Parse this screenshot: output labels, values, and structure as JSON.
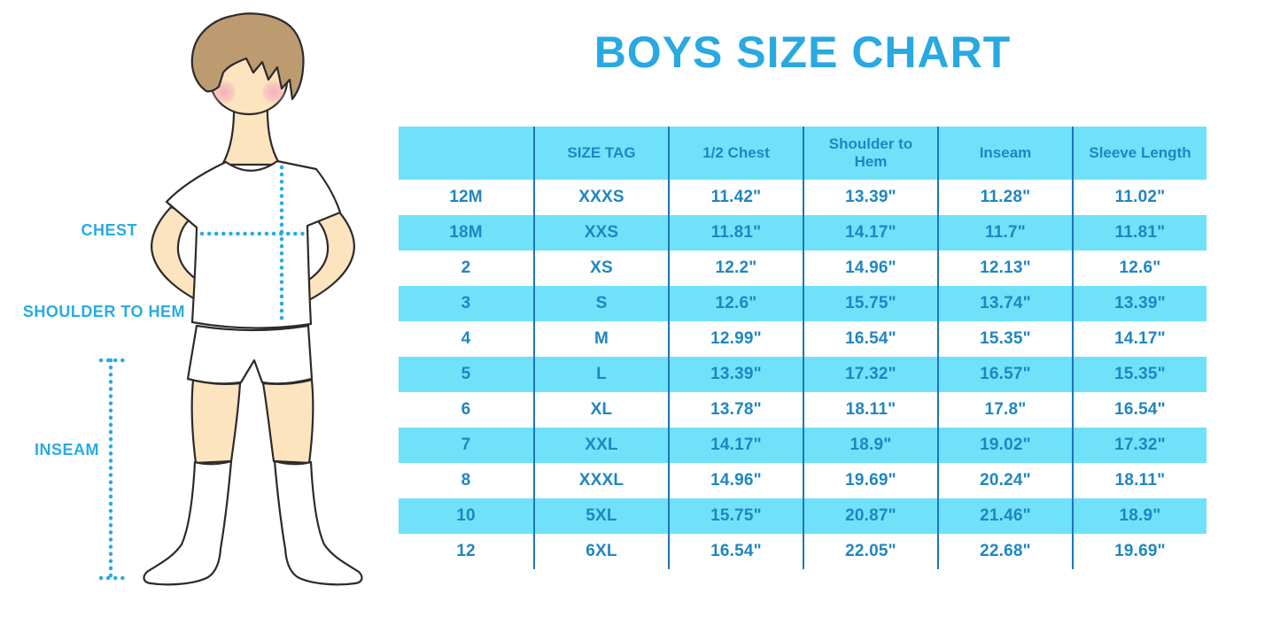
{
  "title": "BOYS SIZE CHART",
  "figure_labels": {
    "chest": "CHEST",
    "shoulder_to_hem": "SHOULDER TO HEM",
    "inseam": "INSEAM"
  },
  "colors": {
    "accent": "#29a9e1",
    "label_blue": "#29abe2",
    "dotted_line": "#29abe2",
    "table_fill": "#6fe2fa",
    "table_divider": "#1c75bc",
    "table_text": "#1e86c2",
    "skin": "#fce4be",
    "hair": "#bd9b70",
    "cheek": "#f2a9bc",
    "outline": "#2e2a2b"
  },
  "chart_data": {
    "type": "table",
    "title": "BOYS SIZE CHART",
    "columns": [
      "",
      "SIZE TAG",
      "1/2 Chest",
      "Shoulder to Hem",
      "Inseam",
      "Sleeve Length"
    ],
    "rows": [
      [
        "12M",
        "XXXS",
        "11.42\"",
        "13.39\"",
        "11.28\"",
        "11.02\""
      ],
      [
        "18M",
        "XXS",
        "11.81\"",
        "14.17\"",
        "11.7\"",
        "11.81\""
      ],
      [
        "2",
        "XS",
        "12.2\"",
        "14.96\"",
        "12.13\"",
        "12.6\""
      ],
      [
        "3",
        "S",
        "12.6\"",
        "15.75\"",
        "13.74\"",
        "13.39\""
      ],
      [
        "4",
        "M",
        "12.99\"",
        "16.54\"",
        "15.35\"",
        "14.17\""
      ],
      [
        "5",
        "L",
        "13.39\"",
        "17.32\"",
        "16.57\"",
        "15.35\""
      ],
      [
        "6",
        "XL",
        "13.78\"",
        "18.11\"",
        "17.8\"",
        "16.54\""
      ],
      [
        "7",
        "XXL",
        "14.17\"",
        "18.9\"",
        "19.02\"",
        "17.32\""
      ],
      [
        "8",
        "XXXL",
        "14.96\"",
        "19.69\"",
        "20.24\"",
        "18.11\""
      ],
      [
        "10",
        "5XL",
        "15.75\"",
        "20.87\"",
        "21.46\"",
        "18.9\""
      ],
      [
        "12",
        "6XL",
        "16.54\"",
        "22.05\"",
        "22.68\"",
        "19.69\""
      ]
    ],
    "layout_hints": {
      "header_background": "light blue",
      "row_striping": "alternating white / light blue starting with white",
      "grid": "vertical dark-blue dividers only, no horizontal borders"
    }
  }
}
